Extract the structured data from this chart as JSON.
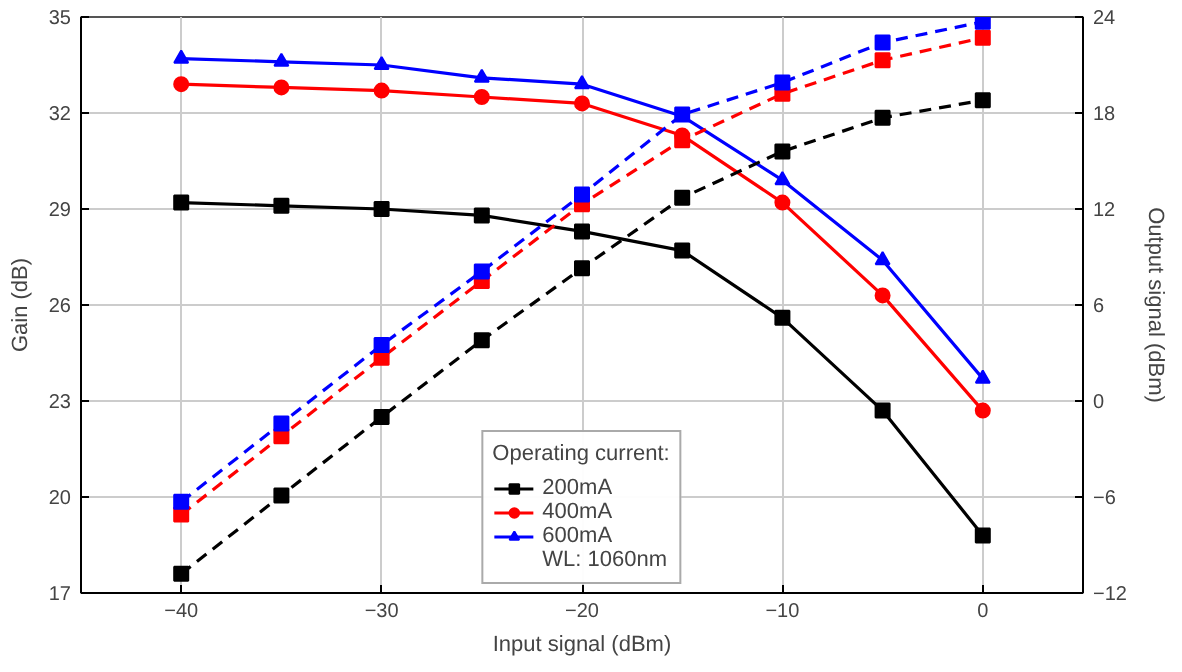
{
  "chart_data": {
    "type": "line",
    "xlabel": "Input signal (dBm)",
    "ylabel": "Gain (dB)",
    "y2label": "Output signal (dBm)",
    "legend_title": "Operating current:",
    "x": [
      -40,
      -35,
      -30,
      -25,
      -20,
      -15,
      -10,
      -5,
      0
    ],
    "xlim": [
      -45,
      5
    ],
    "xticks": [
      -40,
      -30,
      -20,
      -10,
      0
    ],
    "ylim": [
      17,
      35
    ],
    "yticks": [
      17,
      20,
      23,
      26,
      29,
      32,
      35
    ],
    "y2lim": [
      -12,
      24
    ],
    "y2ticks": [
      -12,
      -6,
      0,
      6,
      12,
      18,
      24
    ],
    "grid": true,
    "legend": "bottom",
    "annotations": [
      "WL: 1060nm"
    ],
    "series": [
      {
        "name": "200mA",
        "color": "#000000",
        "marker": "square",
        "line_style": "solid",
        "values": [
          29.2,
          29.1,
          29.0,
          28.8,
          28.3,
          27.7,
          25.6,
          22.7,
          18.8
        ]
      },
      {
        "name": "400mA",
        "color": "#ff0000",
        "marker": "circle",
        "line_style": "solid",
        "values": [
          32.9,
          32.8,
          32.7,
          32.5,
          32.3,
          31.3,
          29.2,
          26.3,
          22.7
        ]
      },
      {
        "name": "600mA",
        "color": "#0000ff",
        "marker": "triangle",
        "line_style": "solid",
        "values": [
          33.7,
          33.6,
          33.5,
          33.1,
          32.9,
          31.9,
          29.9,
          27.4,
          23.7
        ]
      },
      {
        "color": "#000000",
        "marker": "square",
        "line_style": "dashed",
        "axis": "y2",
        "values": [
          -10.8,
          -5.9,
          -1.0,
          3.8,
          8.3,
          12.7,
          15.6,
          17.7,
          18.8
        ]
      },
      {
        "color": "#ff0000",
        "marker": "square",
        "line_style": "dashed",
        "axis": "y2",
        "values": [
          -7.1,
          -2.2,
          2.7,
          7.5,
          12.3,
          16.3,
          19.2,
          21.3,
          22.7
        ]
      },
      {
        "color": "#0000ff",
        "marker": "square",
        "line_style": "dashed",
        "axis": "y2",
        "values": [
          -6.3,
          -1.4,
          3.5,
          8.1,
          12.9,
          17.9,
          19.9,
          22.4,
          23.7
        ]
      }
    ]
  }
}
